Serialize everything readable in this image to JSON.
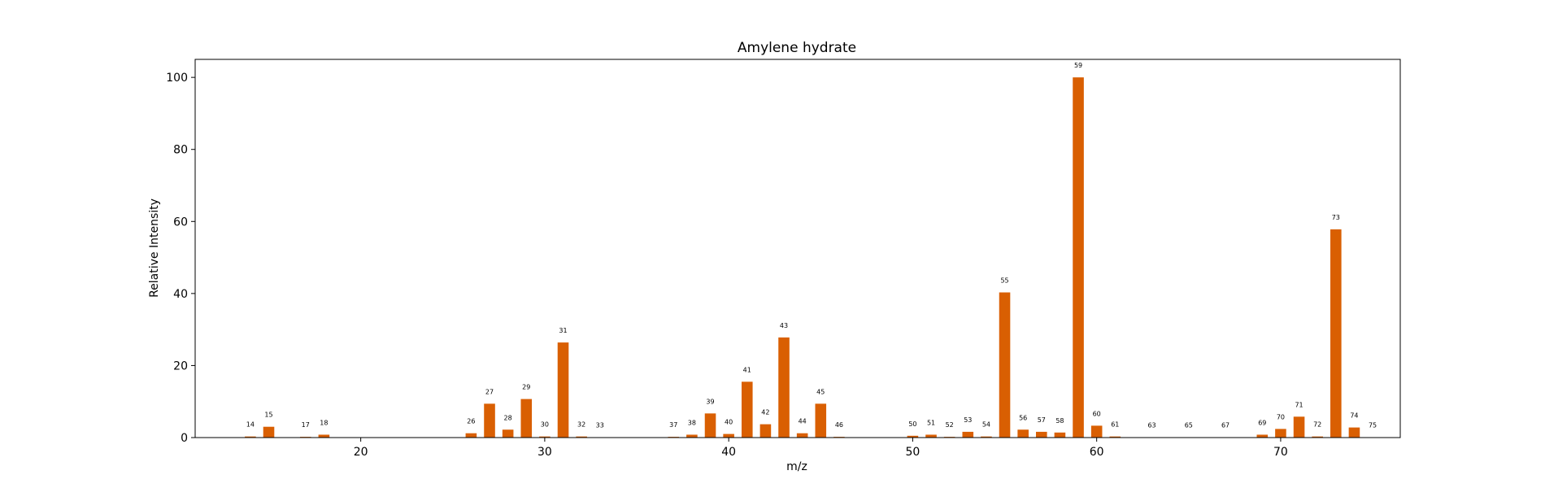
{
  "chart_data": {
    "type": "bar",
    "title": "Amylene hydrate",
    "xlabel": "m/z",
    "ylabel": "Relative Intensity",
    "xlim": [
      11,
      76.5
    ],
    "ylim": [
      0,
      105
    ],
    "xticks": [
      20,
      30,
      40,
      50,
      60,
      70
    ],
    "yticks": [
      0,
      20,
      40,
      60,
      80,
      100
    ],
    "grid": false,
    "bar_color": "#d95f02",
    "x": [
      14,
      15,
      17,
      18,
      26,
      27,
      28,
      29,
      30,
      31,
      32,
      33,
      37,
      38,
      39,
      40,
      41,
      42,
      43,
      44,
      45,
      46,
      50,
      51,
      52,
      53,
      54,
      55,
      56,
      57,
      58,
      59,
      60,
      61,
      63,
      65,
      67,
      69,
      70,
      71,
      72,
      73,
      74,
      75
    ],
    "labels": [
      "14",
      "15",
      "17",
      "18",
      "26",
      "27",
      "28",
      "29",
      "30",
      "31",
      "32",
      "33",
      "37",
      "38",
      "39",
      "40",
      "41",
      "42",
      "43",
      "44",
      "45",
      "46",
      "50",
      "51",
      "52",
      "53",
      "54",
      "55",
      "56",
      "57",
      "58",
      "59",
      "60",
      "61",
      "63",
      "65",
      "67",
      "69",
      "70",
      "71",
      "72",
      "73",
      "74",
      "75"
    ],
    "values": [
      0.3,
      3.0,
      0.2,
      0.8,
      1.2,
      9.4,
      2.2,
      10.7,
      0.3,
      26.4,
      0.3,
      0.1,
      0.2,
      0.8,
      6.7,
      1.0,
      15.5,
      3.7,
      27.8,
      1.2,
      9.4,
      0.2,
      0.5,
      0.8,
      0.2,
      1.6,
      0.3,
      40.3,
      2.2,
      1.6,
      1.4,
      100.0,
      3.3,
      0.3,
      0.1,
      0.1,
      0.1,
      0.8,
      2.4,
      5.8,
      0.3,
      57.8,
      2.8,
      0.1
    ]
  }
}
